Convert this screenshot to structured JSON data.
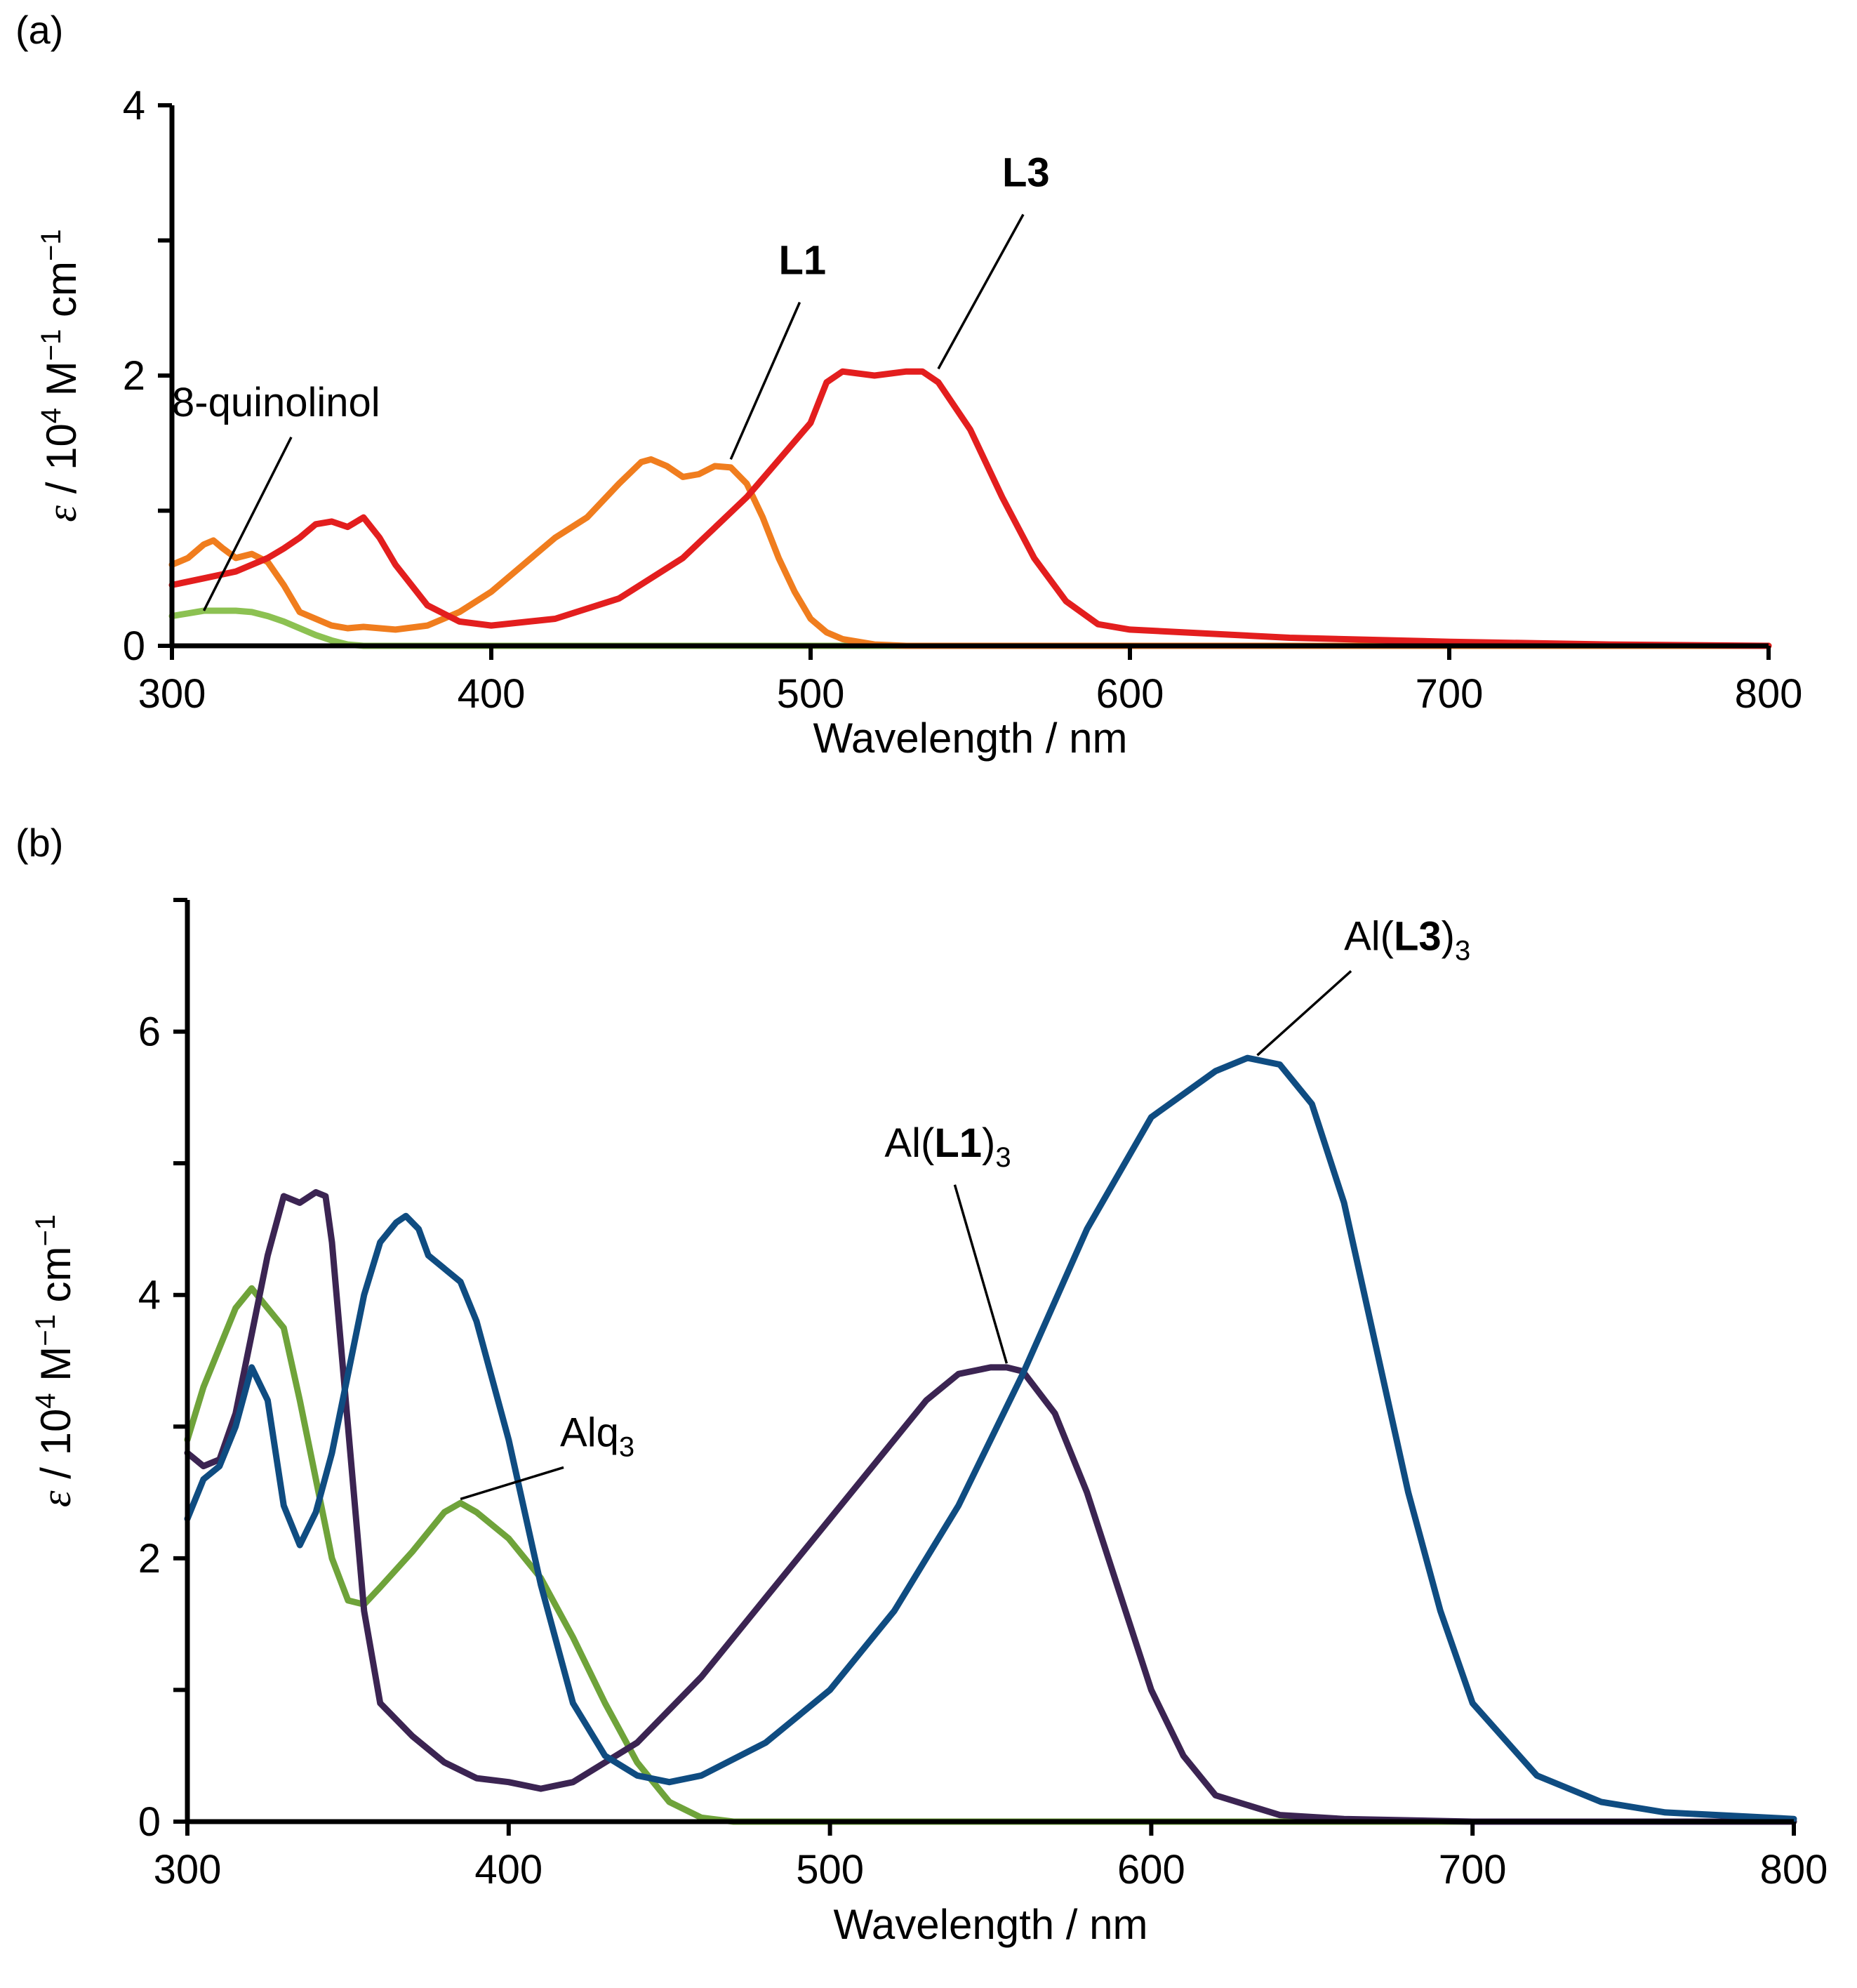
{
  "chart_data": [
    {
      "id": "a",
      "type": "line",
      "panel_label": "(a)",
      "xlabel": "Wavelength / nm",
      "ylabel": {
        "symbol": "ε",
        "rest": " / 10",
        "exp": "4",
        "m": " M",
        "minus1": "−1",
        "cm": " cm",
        "minus2": "−1"
      },
      "xlim": [
        300,
        800
      ],
      "ylim": [
        0,
        4
      ],
      "xticks": [
        300,
        400,
        500,
        600,
        700,
        800
      ],
      "yticks": [
        0,
        2,
        4
      ],
      "yminor": [
        1,
        3
      ],
      "series": [
        {
          "name": "8-quinolinol",
          "color": "#8cc152",
          "x": [
            300,
            305,
            310,
            315,
            320,
            325,
            330,
            335,
            340,
            345,
            350,
            355,
            360,
            800
          ],
          "y": [
            0.22,
            0.24,
            0.26,
            0.26,
            0.26,
            0.25,
            0.22,
            0.18,
            0.13,
            0.08,
            0.04,
            0.01,
            0.0,
            0.0
          ],
          "annotation": {
            "text": "8-quinolinol",
            "bold": false,
            "point": [
              310,
              0.26
            ],
            "text_pos": [
              300,
              1.7
            ]
          }
        },
        {
          "name": "L1",
          "color": "#f07d1e",
          "x": [
            300,
            305,
            310,
            313,
            316,
            320,
            325,
            330,
            335,
            340,
            345,
            350,
            355,
            360,
            370,
            380,
            390,
            400,
            410,
            420,
            430,
            440,
            447,
            450,
            455,
            460,
            465,
            470,
            475,
            480,
            485,
            490,
            495,
            500,
            505,
            510,
            520,
            530,
            800
          ],
          "y": [
            0.6,
            0.65,
            0.75,
            0.78,
            0.72,
            0.65,
            0.68,
            0.62,
            0.45,
            0.25,
            0.2,
            0.15,
            0.13,
            0.14,
            0.12,
            0.15,
            0.25,
            0.4,
            0.6,
            0.8,
            0.95,
            1.2,
            1.36,
            1.38,
            1.33,
            1.25,
            1.27,
            1.33,
            1.32,
            1.2,
            0.95,
            0.65,
            0.4,
            0.2,
            0.1,
            0.05,
            0.01,
            0.0,
            0.0
          ],
          "annotation": {
            "text": "L1",
            "bold": true,
            "point": [
              475,
              1.38
            ],
            "text_pos": [
              490,
              2.75
            ]
          }
        },
        {
          "name": "L3",
          "color": "#e31e1e",
          "x": [
            300,
            310,
            320,
            330,
            335,
            340,
            345,
            350,
            355,
            360,
            365,
            370,
            380,
            390,
            400,
            420,
            440,
            460,
            480,
            500,
            505,
            510,
            520,
            530,
            535,
            540,
            550,
            560,
            570,
            580,
            590,
            600,
            650,
            700,
            750,
            800
          ],
          "y": [
            0.45,
            0.5,
            0.55,
            0.65,
            0.72,
            0.8,
            0.9,
            0.92,
            0.88,
            0.95,
            0.8,
            0.6,
            0.3,
            0.18,
            0.15,
            0.2,
            0.35,
            0.65,
            1.1,
            1.65,
            1.95,
            2.03,
            2.0,
            2.03,
            2.03,
            1.95,
            1.6,
            1.1,
            0.65,
            0.33,
            0.16,
            0.12,
            0.06,
            0.03,
            0.01,
            0.0
          ],
          "annotation": {
            "text": "L3",
            "bold": true,
            "point": [
              540,
              2.05
            ],
            "text_pos": [
              560,
              3.4
            ]
          }
        }
      ]
    },
    {
      "id": "b",
      "type": "line",
      "panel_label": "(b)",
      "xlabel": "Wavelength / nm",
      "ylabel": {
        "symbol": "ε",
        "rest": " / 10",
        "exp": "4",
        "m": " M",
        "minus1": "−1",
        "cm": "  cm",
        "minus2": "−1"
      },
      "xlim": [
        300,
        800
      ],
      "ylim": [
        0,
        7
      ],
      "xticks": [
        300,
        400,
        500,
        600,
        700,
        800
      ],
      "yticks": [
        0,
        2,
        4,
        6
      ],
      "yminor": [
        1,
        3,
        5,
        7
      ],
      "series": [
        {
          "name": "Alq3",
          "color": "#6fa33a",
          "x": [
            300,
            305,
            310,
            315,
            320,
            325,
            330,
            335,
            340,
            345,
            350,
            355,
            360,
            370,
            380,
            385,
            390,
            400,
            410,
            420,
            430,
            440,
            450,
            460,
            470,
            800
          ],
          "y": [
            2.9,
            3.3,
            3.6,
            3.9,
            4.05,
            3.9,
            3.75,
            3.2,
            2.6,
            2.0,
            1.68,
            1.65,
            1.78,
            2.05,
            2.35,
            2.42,
            2.35,
            2.15,
            1.85,
            1.4,
            0.9,
            0.45,
            0.15,
            0.03,
            0.0,
            0.0
          ],
          "annotation": {
            "text": "Alq",
            "sub": "3",
            "bold": false,
            "point": [
              385,
              2.45
            ],
            "text_pos": [
              416,
              2.85
            ]
          }
        },
        {
          "name": "Al(L1)3",
          "color": "#3b2452",
          "x": [
            300,
            305,
            310,
            315,
            320,
            325,
            330,
            335,
            340,
            343,
            345,
            350,
            355,
            360,
            370,
            380,
            390,
            400,
            410,
            420,
            440,
            460,
            480,
            500,
            520,
            530,
            540,
            550,
            555,
            560,
            570,
            580,
            590,
            600,
            610,
            620,
            640,
            660,
            700,
            800
          ],
          "y": [
            2.8,
            2.7,
            2.75,
            3.1,
            3.7,
            4.3,
            4.75,
            4.7,
            4.78,
            4.75,
            4.4,
            3.0,
            1.6,
            0.9,
            0.65,
            0.45,
            0.33,
            0.3,
            0.25,
            0.3,
            0.6,
            1.1,
            1.7,
            2.3,
            2.9,
            3.2,
            3.4,
            3.45,
            3.45,
            3.42,
            3.1,
            2.5,
            1.75,
            1.0,
            0.5,
            0.2,
            0.05,
            0.02,
            0.0,
            0.0
          ],
          "annotation": {
            "text": "Al(",
            "bold_part": "L1",
            "tail": ")",
            "sub": "3",
            "bold": false,
            "point": [
              555,
              3.48
            ],
            "text_pos": [
              517,
              5.05
            ]
          }
        },
        {
          "name": "Al(L3)3",
          "color": "#0f4c81",
          "x": [
            300,
            305,
            310,
            315,
            320,
            325,
            330,
            335,
            340,
            345,
            350,
            355,
            360,
            365,
            368,
            372,
            375,
            380,
            385,
            390,
            400,
            410,
            420,
            430,
            440,
            450,
            460,
            480,
            500,
            520,
            540,
            560,
            580,
            600,
            620,
            630,
            640,
            650,
            660,
            670,
            680,
            690,
            700,
            720,
            740,
            760,
            800
          ],
          "y": [
            2.3,
            2.6,
            2.7,
            3.0,
            3.45,
            3.2,
            2.4,
            2.1,
            2.35,
            2.8,
            3.4,
            4.0,
            4.4,
            4.55,
            4.6,
            4.5,
            4.3,
            4.2,
            4.1,
            3.8,
            2.9,
            1.8,
            0.9,
            0.5,
            0.35,
            0.3,
            0.35,
            0.6,
            1.0,
            1.6,
            2.4,
            3.4,
            4.5,
            5.35,
            5.7,
            5.8,
            5.75,
            5.45,
            4.7,
            3.6,
            2.5,
            1.6,
            0.9,
            0.35,
            0.15,
            0.07,
            0.02
          ],
          "annotation": {
            "text": "Al(",
            "bold_part": "L3",
            "tail": ")",
            "sub": "3",
            "bold": false,
            "point": [
              633,
              5.82
            ],
            "text_pos": [
              660,
              6.62
            ]
          }
        }
      ]
    }
  ]
}
